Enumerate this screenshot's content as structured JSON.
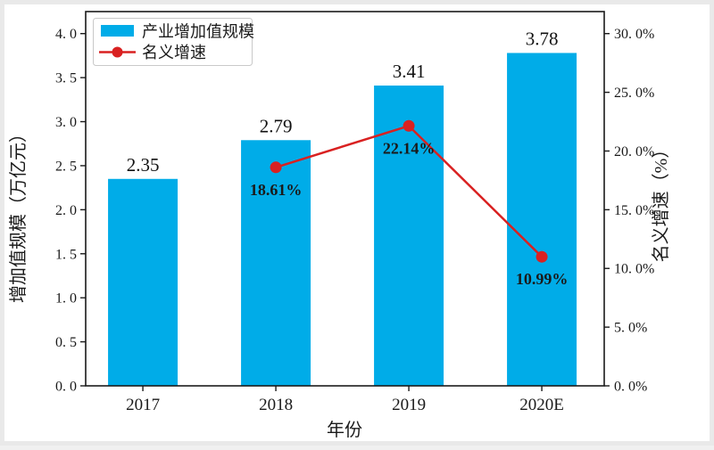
{
  "chart_data": {
    "type": "combo",
    "categories": [
      "2017",
      "2018",
      "2019",
      "2020E"
    ],
    "series": [
      {
        "name": "产业增加值规模",
        "type": "bar",
        "axis": "left",
        "values": [
          2.35,
          2.79,
          3.41,
          3.78
        ],
        "labels": [
          "2.35",
          "2.79",
          "3.41",
          "3.78"
        ],
        "color": "#00ace8"
      },
      {
        "name": "名义增速",
        "type": "line",
        "axis": "right",
        "values": [
          null,
          18.61,
          22.14,
          10.99
        ],
        "labels": [
          "",
          "18.61%",
          "22.14%",
          "10.99%"
        ],
        "color": "#d92121"
      }
    ],
    "title": "",
    "xlabel": "年份",
    "left_axis": {
      "label": "增加值规模（万亿元）",
      "min": 0,
      "max": 4.25,
      "tick_values": [
        0,
        0.5,
        1,
        1.5,
        2,
        2.5,
        3,
        3.5,
        4
      ],
      "tick_labels": [
        "0. 0",
        "0. 5",
        "1. 0",
        "1. 5",
        "2. 0",
        "2. 5",
        "3. 0",
        "3. 5",
        "4. 0"
      ]
    },
    "right_axis": {
      "label": "名义增速（%）",
      "min": 0,
      "max": 31.875,
      "tick_values": [
        0,
        5,
        10,
        15,
        20,
        25,
        30
      ],
      "tick_labels": [
        "0. 0%",
        "5. 0%",
        "10. 0%",
        "15. 0%",
        "20. 0%",
        "25. 0%",
        "30. 0%"
      ]
    },
    "legend": {
      "position": "top-left",
      "entries": [
        "产业增加值规模",
        "名义增速"
      ]
    },
    "grid": false,
    "colors": {
      "bar": "#00ace8",
      "line": "#d92121",
      "value_label": "#111111",
      "pct_label": "#0f2a52",
      "axis": "#1a1a1a",
      "legend_border": "#c9c9c9"
    }
  }
}
